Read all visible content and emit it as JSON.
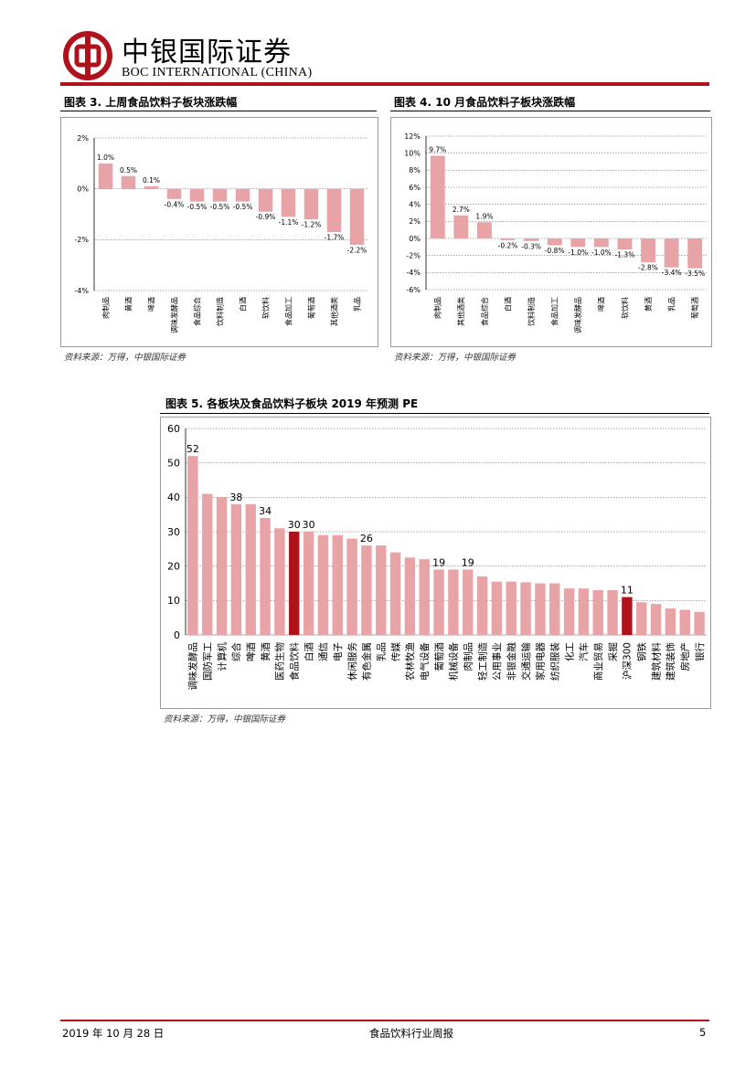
{
  "header": {
    "brand_cn": "中银国际证券",
    "brand_en": "BOC INTERNATIONAL (CHINA)",
    "colors": {
      "brand_red": "#b0121b",
      "bar": "#e8a3a6",
      "highlight": "#b0121b"
    }
  },
  "chart3": {
    "title": "图表 3. 上周食品饮料子板块涨跌幅",
    "source": "资料来源：万得，中银国际证券"
  },
  "chart4": {
    "title": "图表 4. 10 月食品饮料子板块涨跌幅",
    "source": "资料来源：万得，中银国际证券"
  },
  "chart5": {
    "title": "图表 5. 各板块及食品饮料子板块 2019 年预测 PE",
    "source": "资料来源：万得，中银国际证券"
  },
  "footer": {
    "date": "2019 年 10 月 28 日",
    "report": "食品饮料行业周报",
    "page": "5"
  },
  "chart_data": [
    {
      "type": "bar",
      "title": "图表 3. 上周食品饮料子板块涨跌幅",
      "categories": [
        "肉制品",
        "黄酒",
        "啤酒",
        "调味发酵品",
        "食品综合",
        "饮料制造",
        "白酒",
        "软饮料",
        "食品加工",
        "葡萄酒",
        "其他酒类",
        "乳品"
      ],
      "values": [
        1.0,
        0.5,
        0.1,
        -0.4,
        -0.5,
        -0.5,
        -0.5,
        -0.9,
        -1.1,
        -1.2,
        -1.7,
        -2.2
      ],
      "data_labels": [
        "1.0%",
        "0.5%",
        "0.1%",
        "-0.4%",
        "-0.5%",
        "-0.5%",
        "-0.5%",
        "-0.9%",
        "-1.1%",
        "-1.2%",
        "-1.7%",
        "-2.2%"
      ],
      "y_ticks": [
        2,
        0,
        -2,
        -4
      ],
      "y_tick_labels": [
        "2%",
        "0%",
        "-2%",
        "-4%"
      ],
      "ylim": [
        -4,
        2
      ],
      "grid": true
    },
    {
      "type": "bar",
      "title": "图表 4. 10 月食品饮料子板块涨跌幅",
      "categories": [
        "肉制品",
        "其他酒类",
        "食品综合",
        "白酒",
        "饮料制造",
        "食品加工",
        "调味发酵品",
        "啤酒",
        "软饮料",
        "黄酒",
        "乳品",
        "葡萄酒"
      ],
      "values": [
        9.7,
        2.7,
        1.9,
        -0.2,
        -0.3,
        -0.8,
        -1.0,
        -1.0,
        -1.3,
        -2.8,
        -3.4,
        -3.5
      ],
      "data_labels": [
        "9.7%",
        "2.7%",
        "1.9%",
        "-0.2%",
        "-0.3%",
        "-0.8%",
        "-1.0%",
        "-1.0%",
        "-1.3%",
        "-2.8%",
        "-3.4%",
        "-3.5%"
      ],
      "y_ticks": [
        12,
        10,
        8,
        6,
        4,
        2,
        0,
        -2,
        -4,
        -6
      ],
      "y_tick_labels": [
        "12%",
        "10%",
        "8%",
        "6%",
        "4%",
        "2%",
        "0%",
        "-2%",
        "-4%",
        "-6%"
      ],
      "ylim": [
        -6,
        12
      ],
      "grid": true
    },
    {
      "type": "bar",
      "title": "图表 5. 各板块及食品饮料子板块 2019 年预测 PE",
      "categories": [
        "调味发酵品",
        "国防军工",
        "计算机",
        "综合",
        "啤酒",
        "黄酒",
        "医药生物",
        "食品饮料",
        "白酒",
        "通信",
        "电子",
        "休闲服务",
        "有色金属",
        "乳品",
        "传媒",
        "农林牧渔",
        "电气设备",
        "葡萄酒",
        "机械设备",
        "肉制品",
        "轻工制造",
        "公用事业",
        "非银金融",
        "交通运输",
        "家用电器",
        "纺织服装",
        "化工",
        "汽车",
        "商业贸易",
        "采掘",
        "沪深300",
        "钢铁",
        "建筑材料",
        "建筑装饰",
        "房地产",
        "银行"
      ],
      "values": [
        52,
        41,
        40,
        38,
        38,
        34,
        31,
        30,
        30,
        29,
        29,
        28,
        26,
        26,
        24,
        22.5,
        22,
        19,
        19,
        19,
        17,
        15.5,
        15.5,
        15.3,
        15,
        15,
        13.5,
        13.5,
        13,
        13,
        11,
        9.5,
        9,
        7.7,
        7.3,
        6.7
      ],
      "data_labels": [
        {
          "category": "调味发酵品",
          "label": "52"
        },
        {
          "category": "综合",
          "label": "38"
        },
        {
          "category": "黄酒",
          "label": "34"
        },
        {
          "category": "食品饮料",
          "label": "30"
        },
        {
          "category": "白酒",
          "label": "30"
        },
        {
          "category": "有色金属",
          "label": "26"
        },
        {
          "category": "葡萄酒",
          "label": "19"
        },
        {
          "category": "肉制品",
          "label": "19"
        },
        {
          "category": "沪深300",
          "label": "11"
        }
      ],
      "highlight": [
        "食品饮料",
        "沪深300"
      ],
      "y_ticks": [
        60,
        50,
        40,
        30,
        20,
        10,
        0
      ],
      "y_tick_labels": [
        "60",
        "50",
        "40",
        "30",
        "20",
        "10",
        "0"
      ],
      "ylim": [
        0,
        60
      ],
      "grid": true
    }
  ]
}
